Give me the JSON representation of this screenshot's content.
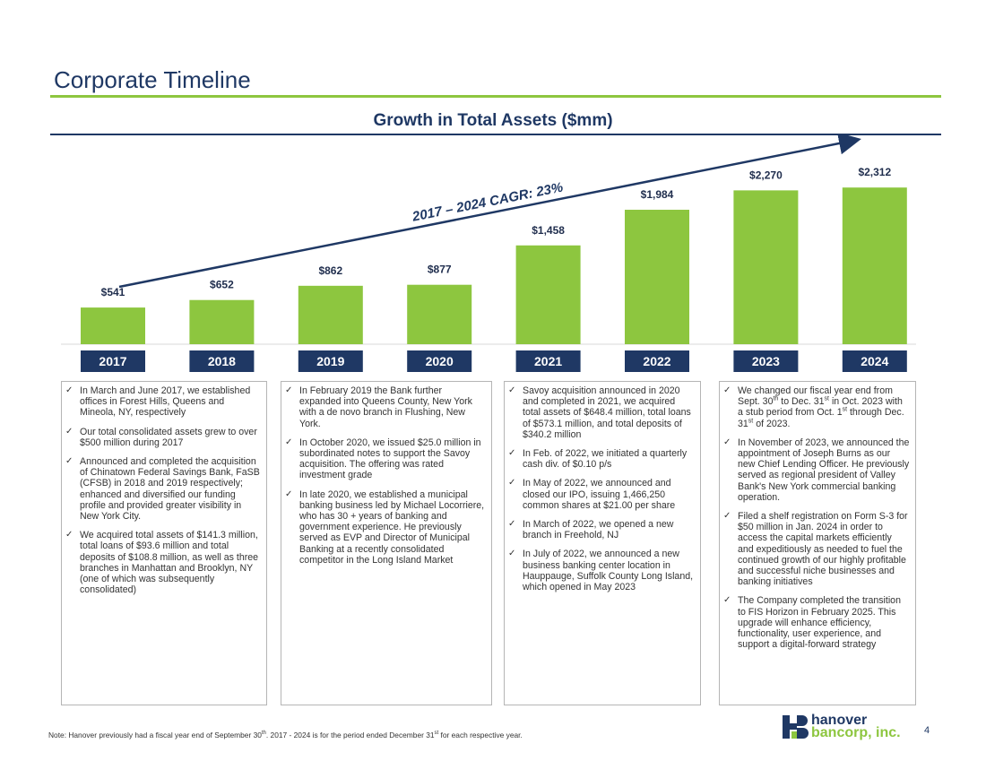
{
  "page": {
    "title": "Corporate Timeline",
    "page_number": "4"
  },
  "colors": {
    "bar": "#8dc63f",
    "navy": "#1f3864",
    "year_box": "#1f3864"
  },
  "chart_data": {
    "type": "bar",
    "title": "Growth in Total Assets ($mm)",
    "categories": [
      "2017",
      "2018",
      "2019",
      "2020",
      "2021",
      "2022",
      "2023",
      "2024"
    ],
    "values": [
      541,
      652,
      862,
      877,
      1458,
      1984,
      2270,
      2312
    ],
    "value_labels": [
      "$541",
      "$652",
      "$862",
      "$877",
      "$1,458",
      "$1,984",
      "$2,270",
      "$2,312"
    ],
    "annotation": "2017 – 2024 CAGR: 23%",
    "ylim": [
      0,
      2500
    ],
    "grid": false,
    "legend": "none"
  },
  "panels": [
    {
      "items": [
        "In March and June 2017, we established offices in Forest Hills, Queens and Mineola, NY, respectively",
        "Our total consolidated assets grew to over $500 million during 2017",
        "Announced and completed the acquisition of Chinatown Federal Savings Bank, FaSB (CFSB) in 2018 and 2019 respectively; enhanced and diversified our funding profile and provided greater visibility in New York City.",
        "We acquired total assets of $141.3 million, total loans of $93.6 million and total deposits of $108.8 million, as well as three branches in Manhattan and Brooklyn, NY (one of which was subsequently consolidated)"
      ]
    },
    {
      "items": [
        "In February 2019 the Bank further expanded into Queens County, New York with a de novo branch in Flushing, New York.",
        "In October 2020, we issued $25.0 million in subordinated notes to support the Savoy acquisition. The offering was rated investment grade",
        "In late 2020, we established a municipal banking business led by Michael Locorriere, who has 30 + years of banking and government experience. He previously served as EVP and Director of Municipal Banking at a recently consolidated competitor in the Long Island Market"
      ]
    },
    {
      "items": [
        "Savoy acquisition announced in 2020 and completed in 2021, we acquired total assets of $648.4 million, total loans of $573.1 million, and total deposits of $340.2 million",
        "In Feb. of 2022, we initiated a quarterly cash div. of $0.10 p/s",
        "In May of 2022, we announced and closed our IPO, issuing 1,466,250 common shares at $21.00 per share",
        "In March of 2022, we opened a new branch in Freehold, NJ",
        "In July of 2022, we announced a new business banking center location in Hauppauge, Suffolk County Long Island, which opened in May 2023"
      ]
    },
    {
      "items": [
        "We changed our fiscal year end from Sept. 30th to Dec. 31st in Oct. 2023 with a stub period from Oct. 1st through Dec. 31st of 2023.",
        "In November of 2023, we announced the appointment of Joseph Burns as our new Chief Lending Officer. He previously served as regional president of Valley Bank's New York commercial banking operation.",
        "Filed a shelf registration on Form S-3 for $50 million in Jan. 2024 in order to access the capital markets efficiently and expeditiously as needed to fuel the continued growth of our highly profitable and successful niche businesses and banking initiatives",
        "The Company completed the transition to FIS Horizon in February 2025. This upgrade will enhance efficiency, functionality, user experience, and support a digital-forward strategy"
      ]
    }
  ],
  "footnote": "Note: Hanover previously had a fiscal year end of September 30th. 2017 - 2024 is for the period ended December 31st for each respective year.",
  "logo": {
    "line1": "hanover",
    "line2": "bancorp, inc.",
    "icon": "hanover-logo-mark"
  },
  "check_icon": "✓"
}
